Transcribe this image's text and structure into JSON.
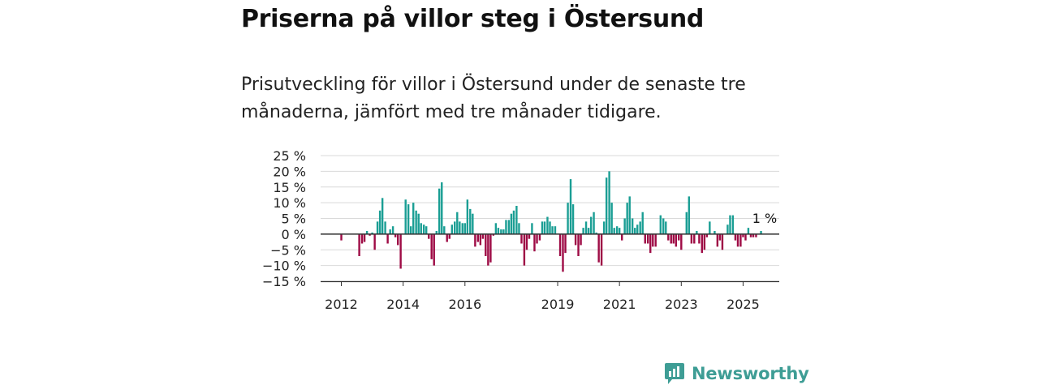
{
  "title": "Priserna på villor steg i Östersund",
  "subtitle": "Prisutveckling för villor i Östersund under de senaste tre månaderna, jämfört med tre månader tidigare.",
  "brand": {
    "name": "Newsworthy",
    "icon": "newsworthy-logo-icon",
    "color": "#3e9d95"
  },
  "chart_data": {
    "type": "bar",
    "title": "",
    "xlabel": "",
    "ylabel": "",
    "ylim": [
      -15,
      25
    ],
    "y_ticks": [
      25,
      20,
      15,
      10,
      5,
      0,
      -5,
      -10,
      -15
    ],
    "y_tick_labels": [
      "25 %",
      "20 %",
      "15 %",
      "10 %",
      "5 %",
      "0 %",
      "−5 %",
      "−10 %",
      "−15 %"
    ],
    "x_ticks": [
      2012,
      2014,
      2016,
      2019,
      2021,
      2023,
      2025
    ],
    "x_tick_labels": [
      "2012",
      "2014",
      "2016",
      "2019",
      "2021",
      "2023",
      "2025"
    ],
    "x_range": [
      2011.33,
      2026.17
    ],
    "grid": true,
    "positive_color": "#1a9e94",
    "negative_color": "#9e0b45",
    "annotation": {
      "text": "1 %",
      "x": 2025.67,
      "y": 1
    },
    "series": [
      {
        "points": [
          {
            "x": 2012.0,
            "y": -2.0
          },
          {
            "x": 2012.58,
            "y": -7.0
          },
          {
            "x": 2012.67,
            "y": -3.0
          },
          {
            "x": 2012.75,
            "y": -2.5
          },
          {
            "x": 2012.83,
            "y": 1.0
          },
          {
            "x": 2012.92,
            "y": -0.5
          },
          {
            "x": 2013.0,
            "y": 0.5
          },
          {
            "x": 2013.08,
            "y": -5.0
          },
          {
            "x": 2013.17,
            "y": 4.0
          },
          {
            "x": 2013.25,
            "y": 7.5
          },
          {
            "x": 2013.33,
            "y": 11.5
          },
          {
            "x": 2013.42,
            "y": 4.0
          },
          {
            "x": 2013.5,
            "y": -3.0
          },
          {
            "x": 2013.58,
            "y": 1.5
          },
          {
            "x": 2013.67,
            "y": 2.5
          },
          {
            "x": 2013.75,
            "y": -1.0
          },
          {
            "x": 2013.83,
            "y": -3.5
          },
          {
            "x": 2013.92,
            "y": -11.0
          },
          {
            "x": 2014.08,
            "y": 11.0
          },
          {
            "x": 2014.17,
            "y": 9.5
          },
          {
            "x": 2014.25,
            "y": 2.5
          },
          {
            "x": 2014.33,
            "y": 10.0
          },
          {
            "x": 2014.42,
            "y": 7.5
          },
          {
            "x": 2014.5,
            "y": 6.5
          },
          {
            "x": 2014.58,
            "y": 3.5
          },
          {
            "x": 2014.67,
            "y": 3.0
          },
          {
            "x": 2014.75,
            "y": 2.5
          },
          {
            "x": 2014.83,
            "y": -1.5
          },
          {
            "x": 2014.92,
            "y": -8.0
          },
          {
            "x": 2015.0,
            "y": -10.0
          },
          {
            "x": 2015.08,
            "y": 1.0
          },
          {
            "x": 2015.17,
            "y": 14.5
          },
          {
            "x": 2015.25,
            "y": 16.5
          },
          {
            "x": 2015.33,
            "y": 2.5
          },
          {
            "x": 2015.42,
            "y": -2.5
          },
          {
            "x": 2015.5,
            "y": -1.5
          },
          {
            "x": 2015.58,
            "y": 3.0
          },
          {
            "x": 2015.67,
            "y": 4.0
          },
          {
            "x": 2015.75,
            "y": 7.0
          },
          {
            "x": 2015.83,
            "y": 4.0
          },
          {
            "x": 2015.92,
            "y": 3.5
          },
          {
            "x": 2016.0,
            "y": 3.5
          },
          {
            "x": 2016.08,
            "y": 11.0
          },
          {
            "x": 2016.17,
            "y": 8.0
          },
          {
            "x": 2016.25,
            "y": 6.5
          },
          {
            "x": 2016.33,
            "y": -4.0
          },
          {
            "x": 2016.42,
            "y": -2.5
          },
          {
            "x": 2016.5,
            "y": -3.5
          },
          {
            "x": 2016.58,
            "y": -1.5
          },
          {
            "x": 2016.67,
            "y": -7.0
          },
          {
            "x": 2016.75,
            "y": -10.0
          },
          {
            "x": 2016.83,
            "y": -9.0
          },
          {
            "x": 2016.92,
            "y": -0.5
          },
          {
            "x": 2017.0,
            "y": 3.5
          },
          {
            "x": 2017.08,
            "y": 2.0
          },
          {
            "x": 2017.17,
            "y": 1.5
          },
          {
            "x": 2017.25,
            "y": 1.5
          },
          {
            "x": 2017.33,
            "y": 4.5
          },
          {
            "x": 2017.42,
            "y": 4.5
          },
          {
            "x": 2017.5,
            "y": 6.5
          },
          {
            "x": 2017.58,
            "y": 7.5
          },
          {
            "x": 2017.67,
            "y": 9.0
          },
          {
            "x": 2017.75,
            "y": 3.5
          },
          {
            "x": 2017.83,
            "y": -3.0
          },
          {
            "x": 2017.92,
            "y": -10.0
          },
          {
            "x": 2018.0,
            "y": -5.0
          },
          {
            "x": 2018.08,
            "y": -1.5
          },
          {
            "x": 2018.17,
            "y": 3.5
          },
          {
            "x": 2018.25,
            "y": -5.5
          },
          {
            "x": 2018.33,
            "y": -3.0
          },
          {
            "x": 2018.42,
            "y": -2.0
          },
          {
            "x": 2018.5,
            "y": 4.0
          },
          {
            "x": 2018.58,
            "y": 4.0
          },
          {
            "x": 2018.67,
            "y": 5.5
          },
          {
            "x": 2018.75,
            "y": 4.0
          },
          {
            "x": 2018.83,
            "y": 2.5
          },
          {
            "x": 2018.92,
            "y": 2.5
          },
          {
            "x": 2019.08,
            "y": -7.0
          },
          {
            "x": 2019.17,
            "y": -12.0
          },
          {
            "x": 2019.25,
            "y": -6.0
          },
          {
            "x": 2019.33,
            "y": 10.0
          },
          {
            "x": 2019.42,
            "y": 17.5
          },
          {
            "x": 2019.5,
            "y": 9.5
          },
          {
            "x": 2019.58,
            "y": -3.5
          },
          {
            "x": 2019.67,
            "y": -7.0
          },
          {
            "x": 2019.75,
            "y": -3.5
          },
          {
            "x": 2019.83,
            "y": 2.0
          },
          {
            "x": 2019.92,
            "y": 4.0
          },
          {
            "x": 2020.0,
            "y": 2.0
          },
          {
            "x": 2020.08,
            "y": 5.5
          },
          {
            "x": 2020.17,
            "y": 7.0
          },
          {
            "x": 2020.25,
            "y": 0.5
          },
          {
            "x": 2020.33,
            "y": -9.0
          },
          {
            "x": 2020.42,
            "y": -10.0
          },
          {
            "x": 2020.5,
            "y": 4.0
          },
          {
            "x": 2020.58,
            "y": 18.0
          },
          {
            "x": 2020.67,
            "y": 20.0
          },
          {
            "x": 2020.75,
            "y": 10.0
          },
          {
            "x": 2020.83,
            "y": 2.0
          },
          {
            "x": 2020.92,
            "y": 2.5
          },
          {
            "x": 2021.0,
            "y": 2.0
          },
          {
            "x": 2021.08,
            "y": -2.0
          },
          {
            "x": 2021.17,
            "y": 5.0
          },
          {
            "x": 2021.25,
            "y": 10.0
          },
          {
            "x": 2021.33,
            "y": 12.0
          },
          {
            "x": 2021.42,
            "y": 5.0
          },
          {
            "x": 2021.5,
            "y": 2.0
          },
          {
            "x": 2021.58,
            "y": 3.0
          },
          {
            "x": 2021.67,
            "y": 4.0
          },
          {
            "x": 2021.75,
            "y": 7.0
          },
          {
            "x": 2021.83,
            "y": -3.0
          },
          {
            "x": 2021.92,
            "y": -3.0
          },
          {
            "x": 2022.0,
            "y": -6.0
          },
          {
            "x": 2022.08,
            "y": -4.0
          },
          {
            "x": 2022.17,
            "y": -4.0
          },
          {
            "x": 2022.33,
            "y": 6.0
          },
          {
            "x": 2022.42,
            "y": 5.0
          },
          {
            "x": 2022.5,
            "y": 4.0
          },
          {
            "x": 2022.58,
            "y": -2.0
          },
          {
            "x": 2022.67,
            "y": -3.0
          },
          {
            "x": 2022.75,
            "y": -3.0
          },
          {
            "x": 2022.83,
            "y": -4.0
          },
          {
            "x": 2022.92,
            "y": -2.0
          },
          {
            "x": 2023.0,
            "y": -5.0
          },
          {
            "x": 2023.17,
            "y": 7.0
          },
          {
            "x": 2023.25,
            "y": 12.0
          },
          {
            "x": 2023.33,
            "y": -3.0
          },
          {
            "x": 2023.42,
            "y": -3.0
          },
          {
            "x": 2023.5,
            "y": 1.0
          },
          {
            "x": 2023.58,
            "y": -3.0
          },
          {
            "x": 2023.67,
            "y": -6.0
          },
          {
            "x": 2023.75,
            "y": -5.0
          },
          {
            "x": 2023.83,
            "y": -1.0
          },
          {
            "x": 2023.92,
            "y": 4.0
          },
          {
            "x": 2024.08,
            "y": 1.0
          },
          {
            "x": 2024.17,
            "y": -4.0
          },
          {
            "x": 2024.25,
            "y": -2.0
          },
          {
            "x": 2024.33,
            "y": -5.0
          },
          {
            "x": 2024.5,
            "y": 3.0
          },
          {
            "x": 2024.58,
            "y": 6.0
          },
          {
            "x": 2024.67,
            "y": 6.0
          },
          {
            "x": 2024.75,
            "y": -2.0
          },
          {
            "x": 2024.83,
            "y": -4.0
          },
          {
            "x": 2024.92,
            "y": -4.0
          },
          {
            "x": 2025.0,
            "y": -1.0
          },
          {
            "x": 2025.08,
            "y": -2.0
          },
          {
            "x": 2025.17,
            "y": 2.0
          },
          {
            "x": 2025.25,
            "y": -1.0
          },
          {
            "x": 2025.33,
            "y": -1.0
          },
          {
            "x": 2025.42,
            "y": -1.0
          },
          {
            "x": 2025.58,
            "y": 1.0
          }
        ]
      }
    ]
  }
}
